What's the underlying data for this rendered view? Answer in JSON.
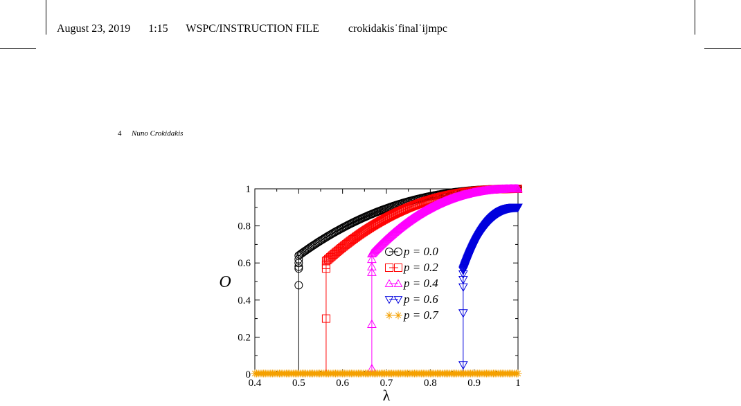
{
  "running_header": {
    "date": "August 23, 2019",
    "time": "1:15",
    "file_type": "WSPC/INSTRUCTION FILE",
    "file_name": "crokidakis˙final˙ijmpc"
  },
  "page_header": {
    "page_number": "4",
    "author": "Nuno Crokidakis"
  },
  "colors": {
    "p0": "#000000",
    "p02": "#ff0000",
    "p04": "#ff00ff",
    "p06": "#0000dd",
    "p07": "#f4a000"
  },
  "chart_data": {
    "type": "scatter",
    "xlabel": "λ",
    "ylabel": "O",
    "xlim": [
      0.4,
      1.0
    ],
    "ylim": [
      0,
      1
    ],
    "x_ticks": [
      "0.4",
      "0.5",
      "0.6",
      "0.7",
      "0.8",
      "0.9",
      "1"
    ],
    "y_ticks": [
      "0",
      "0.2",
      "0.4",
      "0.6",
      "0.8",
      "1"
    ],
    "grid": false,
    "legend_position": "center",
    "series": [
      {
        "name": "p = 0.0",
        "marker": "circle",
        "color": "#000000",
        "lambda_c": 0.5,
        "jump_points": [
          0.48,
          0.57,
          0.58,
          0.6,
          0.62,
          0.64
        ],
        "saturation": 1.0
      },
      {
        "name": "p = 0.2",
        "marker": "square",
        "color": "#ff0000",
        "lambda_c": 0.5625,
        "jump_points": [
          0.3,
          0.57,
          0.59,
          0.61
        ],
        "saturation": 1.0
      },
      {
        "name": "p = 0.4",
        "marker": "triangle-up",
        "color": "#ff00ff",
        "lambda_c": 0.6667,
        "jump_points": [
          0.03,
          0.27,
          0.55,
          0.58,
          0.62,
          0.65
        ],
        "saturation": 1.0
      },
      {
        "name": "p = 0.6",
        "marker": "triangle-down",
        "color": "#0000dd",
        "lambda_c": 0.875,
        "jump_points": [
          0.05,
          0.33,
          0.47,
          0.51,
          0.54,
          0.56
        ],
        "saturation": 0.9
      },
      {
        "name": "p = 0.7",
        "marker": "star",
        "color": "#f4a000",
        "lambda_c": null,
        "jump_points": [],
        "saturation": 0.0
      }
    ]
  }
}
